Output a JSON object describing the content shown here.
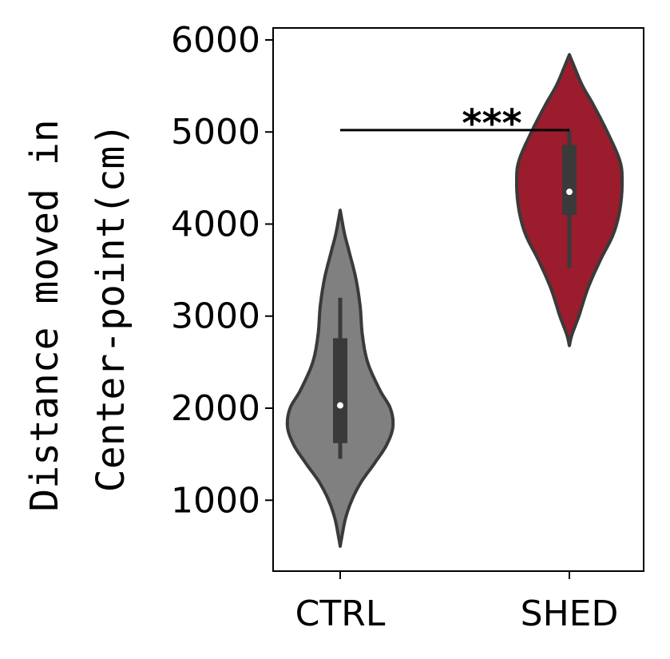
{
  "chart_data": {
    "type": "violin",
    "title": "",
    "xlabel": "",
    "ylabel_lines": [
      "Distance moved in",
      "Center-point(cm)"
    ],
    "ylim": [
      230,
      6130
    ],
    "yticks": [
      1000,
      2000,
      3000,
      4000,
      5000,
      6000
    ],
    "ytick_labels": [
      "1000",
      "2000",
      "3000",
      "4000",
      "5000",
      "6000"
    ],
    "categories": [
      "CTRL",
      "SHED"
    ],
    "grid": false,
    "series": [
      {
        "category": "CTRL",
        "color": "#808080",
        "min": 1450,
        "q1": 1620,
        "median": 2030,
        "q3": 2760,
        "max": 3200,
        "kde_max_width_value": 1850,
        "density": [
          [
            500,
            0.0
          ],
          [
            600,
            0.03
          ],
          [
            800,
            0.1
          ],
          [
            1000,
            0.22
          ],
          [
            1200,
            0.4
          ],
          [
            1400,
            0.65
          ],
          [
            1600,
            0.88
          ],
          [
            1800,
            1.0
          ],
          [
            2000,
            0.95
          ],
          [
            2200,
            0.75
          ],
          [
            2500,
            0.52
          ],
          [
            2800,
            0.42
          ],
          [
            3100,
            0.38
          ],
          [
            3400,
            0.3
          ],
          [
            3700,
            0.17
          ],
          [
            3900,
            0.08
          ],
          [
            4150,
            0.0
          ]
        ]
      },
      {
        "category": "SHED",
        "color": "#9b1c2c",
        "min": 3520,
        "q1": 4100,
        "median": 4350,
        "q3": 4860,
        "max": 5020,
        "kde_max_width_value": 4480,
        "density": [
          [
            2680,
            0.0
          ],
          [
            2800,
            0.05
          ],
          [
            3000,
            0.18
          ],
          [
            3300,
            0.35
          ],
          [
            3600,
            0.58
          ],
          [
            3900,
            0.84
          ],
          [
            4200,
            0.97
          ],
          [
            4500,
            1.0
          ],
          [
            4700,
            0.95
          ],
          [
            5000,
            0.72
          ],
          [
            5300,
            0.45
          ],
          [
            5500,
            0.25
          ],
          [
            5700,
            0.1
          ],
          [
            5840,
            0.0
          ]
        ]
      }
    ],
    "annotation": {
      "text": "***",
      "from": "CTRL",
      "to": "SHED",
      "y": 5020
    }
  }
}
